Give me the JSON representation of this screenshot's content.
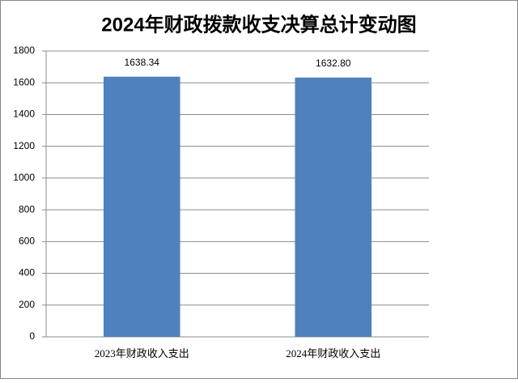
{
  "chart_data": {
    "type": "bar",
    "title": "2024年财政拨款收支决算总计变动图",
    "categories": [
      "2023年财政收入支出",
      "2024年财政收入支出"
    ],
    "values": [
      1638.34,
      1632.8
    ],
    "value_labels": [
      "1638.34",
      "1632.80"
    ],
    "color": "#4f81bd",
    "ylim": [
      0,
      1800
    ],
    "yticks": [
      0,
      200,
      400,
      600,
      800,
      1000,
      1200,
      1400,
      1600,
      1800
    ],
    "grid": true
  }
}
